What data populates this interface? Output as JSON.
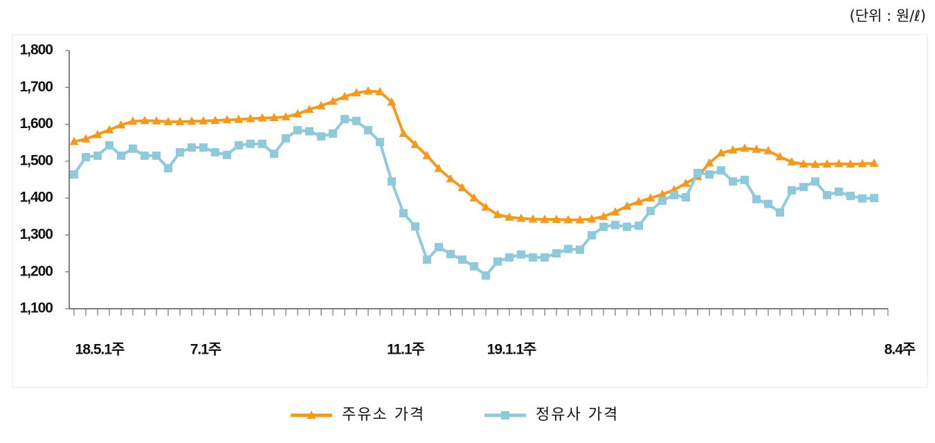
{
  "chart_data": {
    "type": "line",
    "unit_label": "(단위 : 원/ℓ)",
    "categories": [
      "18.5.1주",
      null,
      null,
      null,
      null,
      null,
      null,
      null,
      null,
      "7.1주",
      null,
      null,
      null,
      null,
      null,
      null,
      null,
      null,
      null,
      null,
      null,
      null,
      null,
      null,
      null,
      null,
      "11.1주",
      null,
      null,
      null,
      null,
      null,
      null,
      null,
      null,
      "19.1.1주",
      null,
      null,
      null,
      null,
      null,
      null,
      null,
      null,
      null,
      null,
      null,
      null,
      null,
      null,
      null,
      null,
      null,
      null,
      null,
      null,
      null,
      null,
      null,
      null,
      null,
      null,
      null,
      null,
      null,
      null,
      null,
      null,
      "8.4주"
    ],
    "series": [
      {
        "name": "주유소 가격",
        "color": "#f39a1e",
        "marker": "triangle",
        "values": [
          1553,
          1560,
          1572,
          1585,
          1598,
          1608,
          1610,
          1609,
          1607,
          1607,
          1608,
          1609,
          1610,
          1612,
          1613,
          1615,
          1617,
          1618,
          1620,
          1628,
          1640,
          1650,
          1662,
          1675,
          1685,
          1690,
          1688,
          1660,
          1575,
          1545,
          1515,
          1480,
          1452,
          1428,
          1400,
          1375,
          1355,
          1348,
          1345,
          1343,
          1342,
          1342,
          1341,
          1341,
          1343,
          1350,
          1362,
          1378,
          1390,
          1400,
          1410,
          1422,
          1440,
          1458,
          1495,
          1522,
          1530,
          1535,
          1532,
          1528,
          1512,
          1498,
          1492,
          1491,
          1492,
          1493,
          1492,
          1493,
          1494
        ]
      },
      {
        "name": "정유사 가격",
        "color": "#8ec9dc",
        "marker": "square",
        "values": [
          1464,
          1511,
          1515,
          1543,
          1515,
          1534,
          1515,
          1515,
          1481,
          1524,
          1537,
          1537,
          1524,
          1517,
          1543,
          1547,
          1547,
          1520,
          1562,
          1584,
          1581,
          1567,
          1575,
          1614,
          1609,
          1584,
          1552,
          1445,
          1359,
          1323,
          1233,
          1267,
          1248,
          1233,
          1215,
          1190,
          1228,
          1239,
          1247,
          1239,
          1239,
          1250,
          1262,
          1260,
          1299,
          1322,
          1327,
          1322,
          1325,
          1365,
          1393,
          1408,
          1402,
          1468,
          1464,
          1475,
          1445,
          1449,
          1397,
          1384,
          1361,
          1421,
          1430,
          1445,
          1408,
          1417,
          1406,
          1399,
          1400
        ]
      }
    ],
    "ylim": [
      1100,
      1800
    ],
    "yticks": [
      {
        "value": 1100,
        "label": "1,100"
      },
      {
        "value": 1200,
        "label": "1,200"
      },
      {
        "value": 1300,
        "label": "1,300"
      },
      {
        "value": 1400,
        "label": "1,400"
      },
      {
        "value": 1500,
        "label": "1,500"
      },
      {
        "value": 1600,
        "label": "1,600"
      },
      {
        "value": 1700,
        "label": "1,700"
      },
      {
        "value": 1800,
        "label": "1,800"
      }
    ],
    "grid": false,
    "legend": "bottom"
  }
}
